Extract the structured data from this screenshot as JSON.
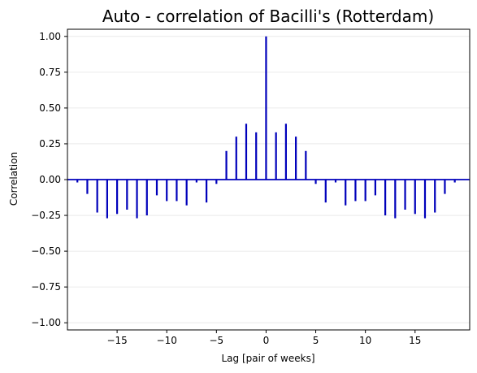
{
  "chart_data": {
    "type": "bar",
    "title": "Auto - correlation of Bacilli's (Rotterdam)",
    "xlabel": "Lag [pair of weeks]",
    "ylabel": "Correlation",
    "xlim": [
      -20,
      20.5
    ],
    "ylim": [
      -1.05,
      1.05
    ],
    "xticks": [
      -15,
      -10,
      -5,
      0,
      5,
      10,
      15
    ],
    "xtick_labels": [
      "−15",
      "−10",
      "−5",
      "0",
      "5",
      "10",
      "15"
    ],
    "yticks": [
      -1.0,
      -0.75,
      -0.5,
      -0.25,
      0.0,
      0.25,
      0.5,
      0.75,
      1.0
    ],
    "ytick_labels": [
      "−1.00",
      "−0.75",
      "−0.50",
      "−0.25",
      "0.00",
      "0.25",
      "0.50",
      "0.75",
      "1.00"
    ],
    "grid": "y",
    "series": [
      {
        "x": [
          -19,
          -18,
          -17,
          -16,
          -15,
          -14,
          -13,
          -12,
          -11,
          -10,
          -9,
          -8,
          -7,
          -6,
          -5,
          -4,
          -3,
          -2,
          -1,
          0,
          1,
          2,
          3,
          4,
          5,
          6,
          7,
          8,
          9,
          10,
          11,
          12,
          13,
          14,
          15,
          16,
          17,
          18,
          19
        ],
        "values": [
          -0.02,
          -0.1,
          -0.23,
          -0.27,
          -0.24,
          -0.21,
          -0.27,
          -0.25,
          -0.11,
          -0.15,
          -0.15,
          -0.18,
          -0.02,
          -0.16,
          -0.03,
          0.2,
          0.3,
          0.39,
          0.33,
          1.0,
          0.33,
          0.39,
          0.3,
          0.2,
          -0.03,
          -0.16,
          -0.02,
          -0.18,
          -0.15,
          -0.15,
          -0.11,
          -0.25,
          -0.27,
          -0.21,
          -0.24,
          -0.27,
          -0.23,
          -0.1,
          -0.02
        ]
      }
    ],
    "colors": {
      "bar": "#0000bb",
      "zero_line": "#0000bb",
      "grid": "#e6e6e6",
      "axes": "#000000"
    }
  }
}
